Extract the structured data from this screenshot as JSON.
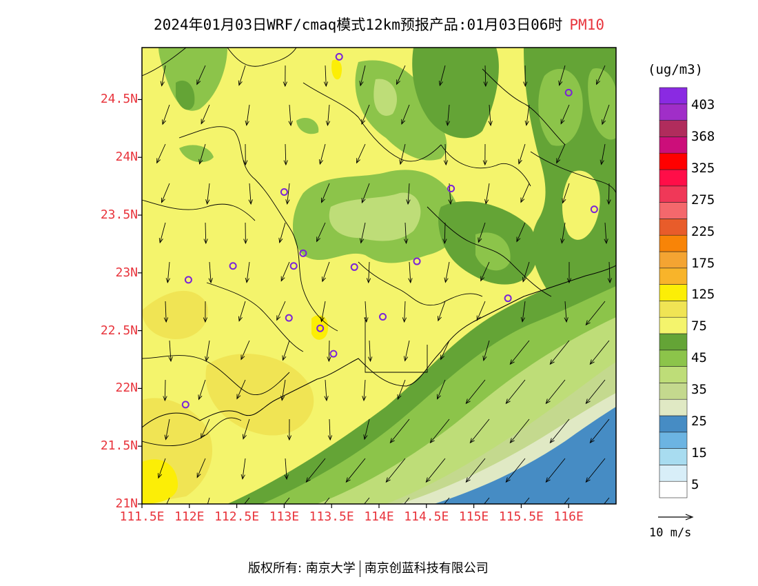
{
  "title": {
    "main": "2024年01月03日WRF/cmaq模式12km预报产品:01月03日06时",
    "pollutant": "PM10"
  },
  "axes": {
    "lat_labels": [
      "24.5N",
      "24N",
      "23.5N",
      "23N",
      "22.5N",
      "22N",
      "21.5N",
      "21N"
    ],
    "lon_labels": [
      "111.5E",
      "112E",
      "112.5E",
      "113E",
      "113.5E",
      "114E",
      "114.5E",
      "115E",
      "115.5E",
      "116E"
    ],
    "lat_range": [
      21.0,
      24.95
    ],
    "lon_range": [
      111.5,
      116.5
    ]
  },
  "colorbar": {
    "units": "(ug/m3)",
    "labels": [
      "403",
      "368",
      "325",
      "275",
      "225",
      "175",
      "125",
      "75",
      "45",
      "35",
      "25",
      "15",
      "5"
    ],
    "colors": [
      "#ffffff",
      "#d8eef8",
      "#a8dcf0",
      "#6cb4e2",
      "#468cc4",
      "#e0e9c4",
      "#c4d98e",
      "#bedd78",
      "#8cc44a",
      "#64a436",
      "#f4f46c",
      "#f0e454",
      "#fcee06",
      "#f8b42a",
      "#f4a432",
      "#f88407",
      "#e85c2a",
      "#f4686c",
      "#f03858",
      "#ff0e48",
      "#ff0000",
      "#cc0e7a",
      "#b02c5c",
      "#a02ec8",
      "#8a2ae2"
    ]
  },
  "vector_legend": {
    "label": "10 m/s"
  },
  "stations": [
    {
      "lon": 113.58,
      "lat": 24.87
    },
    {
      "lon": 116.0,
      "lat": 24.56
    },
    {
      "lon": 114.76,
      "lat": 23.73
    },
    {
      "lon": 113.0,
      "lat": 23.7
    },
    {
      "lon": 116.27,
      "lat": 23.55
    },
    {
      "lon": 113.2,
      "lat": 23.17
    },
    {
      "lon": 113.1,
      "lat": 23.06
    },
    {
      "lon": 112.46,
      "lat": 23.06
    },
    {
      "lon": 113.74,
      "lat": 23.05
    },
    {
      "lon": 114.4,
      "lat": 23.1
    },
    {
      "lon": 111.99,
      "lat": 22.94
    },
    {
      "lon": 115.36,
      "lat": 22.78
    },
    {
      "lon": 114.04,
      "lat": 22.62
    },
    {
      "lon": 113.05,
      "lat": 22.61
    },
    {
      "lon": 113.38,
      "lat": 22.52
    },
    {
      "lon": 113.52,
      "lat": 22.3
    },
    {
      "lon": 111.96,
      "lat": 21.86
    }
  ],
  "credit": {
    "left": "版权所有: 南京大学",
    "right": "南京创蓝科技有限公司"
  }
}
